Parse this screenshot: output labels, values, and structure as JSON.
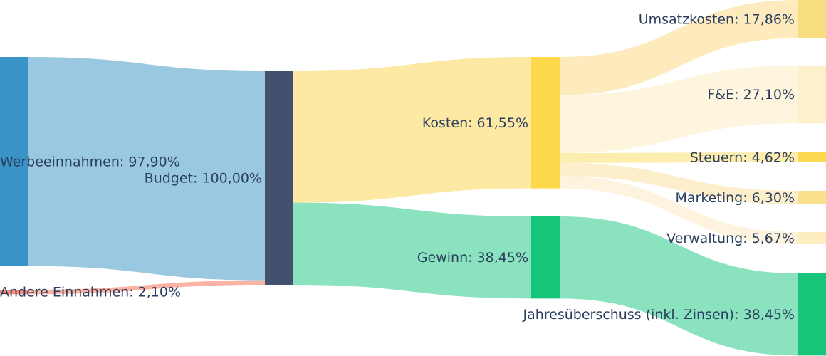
{
  "chart_data": {
    "type": "sankey",
    "nodes": {
      "labels": [
        "Werbeeinnahmen: 97,90%",
        "Andere Einnahmen: 2,10%",
        "Budget: 100,00%",
        "Kosten: 61,55%",
        "Gewinn: 38,45%",
        "Umsatzkosten: 17,86%",
        "F&E: 27,10%",
        "Steuern: 4,62%",
        "Marketing: 6,30%",
        "Verwaltung: 5,67%",
        "Jahresüberschuss (inkl. Zinsen): 38,45%"
      ],
      "values": [
        97.9,
        2.1,
        100.0,
        61.55,
        38.45,
        17.86,
        27.1,
        4.62,
        6.3,
        5.67,
        38.45
      ],
      "colors": [
        "#3a93c6",
        "#fa8d7a",
        "#43506e",
        "#fed84b",
        "#16c47a",
        "#f9de80",
        "#fdf0cc",
        "#fbd84d",
        "#fbe08c",
        "#fdedc1",
        "#17c47a"
      ]
    },
    "links": [
      {
        "source": 0,
        "target": 2,
        "value": 97.9,
        "color": "#9bc8e1"
      },
      {
        "source": 1,
        "target": 2,
        "value": 2.1,
        "color": "#fcb3a4"
      },
      {
        "source": 2,
        "target": 3,
        "value": 61.55,
        "color": "#fde9a3"
      },
      {
        "source": 2,
        "target": 4,
        "value": 38.45,
        "color": "#8ae2bf"
      },
      {
        "source": 3,
        "target": 5,
        "value": 17.86,
        "color": "#fdebbe"
      },
      {
        "source": 3,
        "target": 6,
        "value": 27.1,
        "color": "#fef5de"
      },
      {
        "source": 3,
        "target": 7,
        "value": 4.62,
        "color": "#fdeeb0"
      },
      {
        "source": 3,
        "target": 8,
        "value": 6.3,
        "color": "#fdefcc"
      },
      {
        "source": 3,
        "target": 9,
        "value": 5.67,
        "color": "#fdf3df"
      },
      {
        "source": 4,
        "target": 10,
        "value": 38.45,
        "color": "#8ae2bf"
      }
    ]
  }
}
